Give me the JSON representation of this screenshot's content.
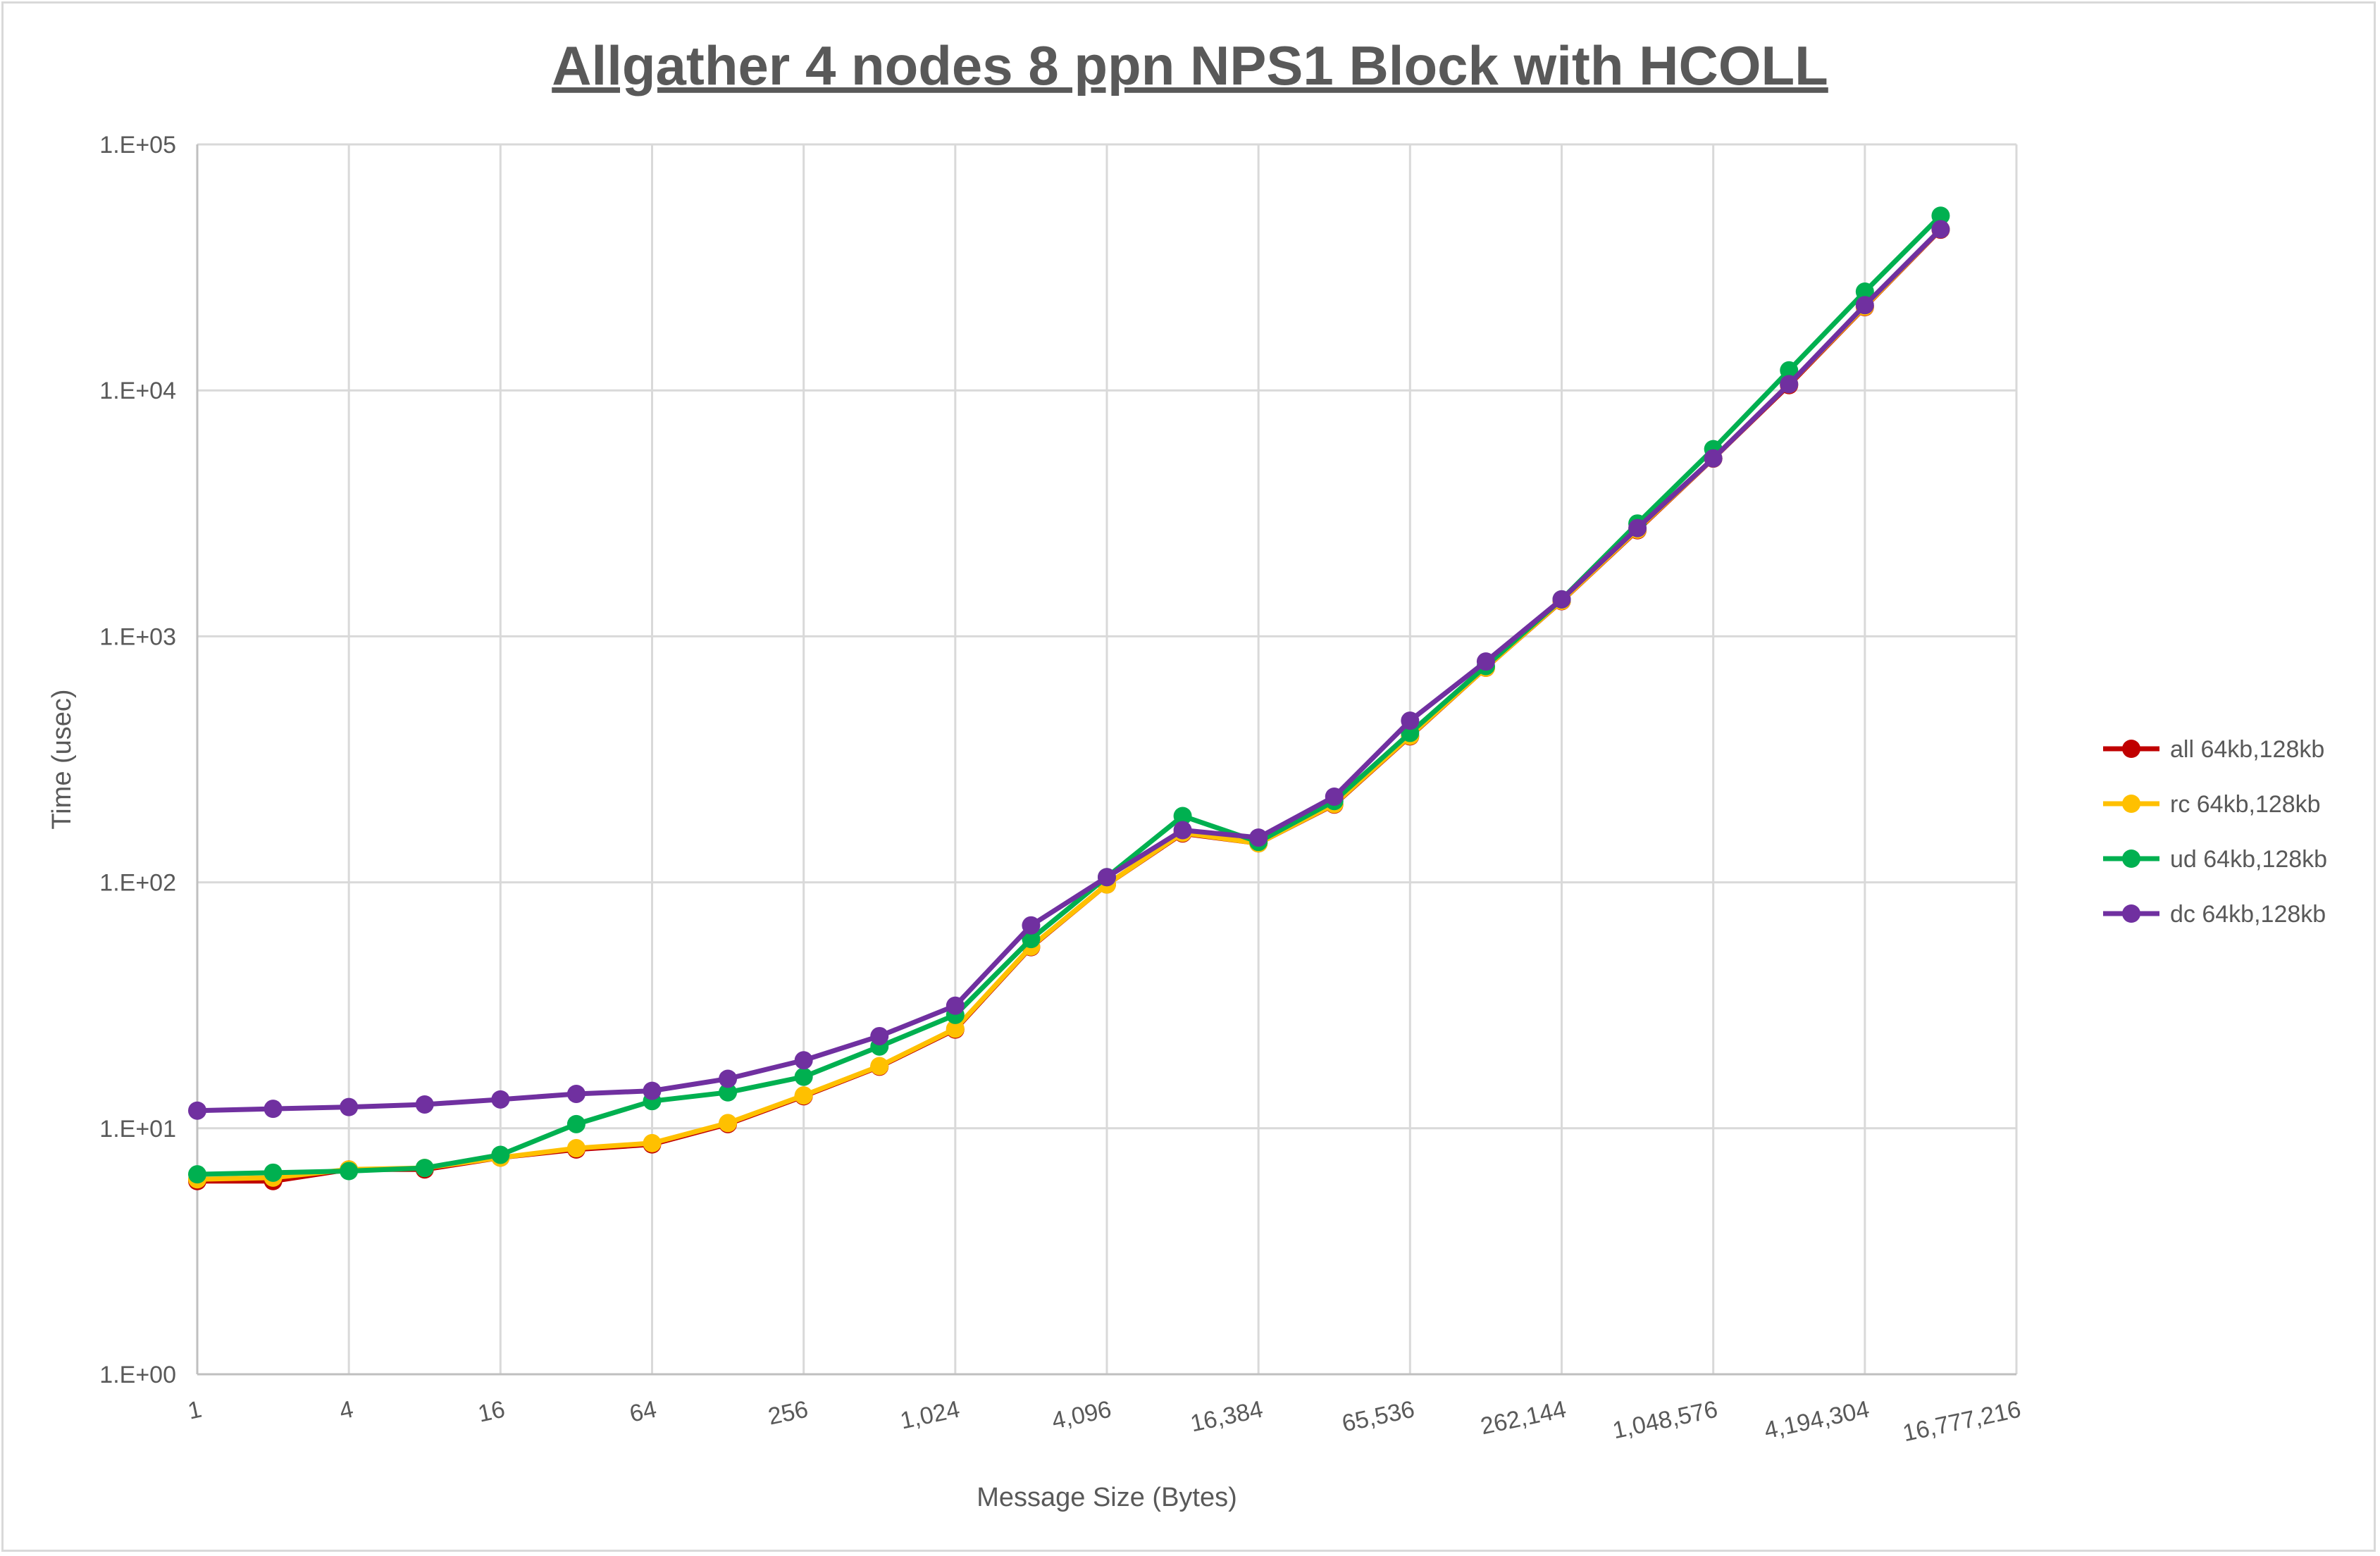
{
  "chart_data": {
    "type": "line",
    "title": "Allgather 4 nodes 8 ppn NPS1 Block with HCOLL",
    "xlabel": "Message Size (Bytes)",
    "ylabel": "Time (usec)",
    "x_scale": "log2",
    "y_scale": "log10",
    "xlim": [
      1,
      16777216
    ],
    "ylim": [
      1,
      100000
    ],
    "grid": true,
    "legend_position": "right",
    "x_tick_labels": [
      "1",
      "4",
      "16",
      "64",
      "256",
      "1,024",
      "4,096",
      "16,384",
      "65,536",
      "262,144",
      "1,048,576",
      "4,194,304",
      "16,777,216"
    ],
    "x_tick_values": [
      1,
      4,
      16,
      64,
      256,
      1024,
      4096,
      16384,
      65536,
      262144,
      1048576,
      4194304,
      16777216
    ],
    "y_tick_labels": [
      "1.E+00",
      "1.E+01",
      "1.E+02",
      "1.E+03",
      "1.E+04",
      "1.E+05"
    ],
    "y_tick_values": [
      1,
      10,
      100,
      1000,
      10000,
      100000
    ],
    "x": [
      1,
      2,
      4,
      8,
      16,
      32,
      64,
      128,
      256,
      512,
      1024,
      2048,
      4096,
      8192,
      16384,
      32768,
      65536,
      131072,
      262144,
      524288,
      1048576,
      2097152,
      4194304,
      8388608
    ],
    "series": [
      {
        "name": "all 64kb,128kb",
        "color": "#c00000",
        "values": [
          6.1,
          6.1,
          6.8,
          6.8,
          7.6,
          8.2,
          8.6,
          10.4,
          13.5,
          17.8,
          25.2,
          54.5,
          98,
          158,
          144,
          207,
          392,
          745,
          1390,
          2700,
          5280,
          10500,
          21800,
          45000
        ]
      },
      {
        "name": "rc 64kb,128kb",
        "color": "#ffc000",
        "values": [
          6.2,
          6.3,
          6.8,
          6.9,
          7.6,
          8.3,
          8.7,
          10.5,
          13.6,
          17.9,
          25.4,
          54.8,
          98,
          159,
          144,
          208,
          394,
          746,
          1394,
          2716,
          5290,
          10600,
          21900,
          45200
        ]
      },
      {
        "name": "ud 64kb,128kb",
        "color": "#00b050",
        "values": [
          6.5,
          6.6,
          6.7,
          6.9,
          7.8,
          10.4,
          12.9,
          14.0,
          16.2,
          21.5,
          28.9,
          58.8,
          105,
          186,
          146,
          214,
          405,
          757,
          1414,
          2876,
          5770,
          12060,
          25200,
          51300
        ]
      },
      {
        "name": "dc 64kb,128kb",
        "color": "#7030a0",
        "values": [
          11.8,
          12.0,
          12.2,
          12.5,
          13.1,
          13.8,
          14.2,
          15.9,
          18.9,
          23.7,
          31.5,
          66.8,
          105,
          163,
          152,
          223,
          454,
          790,
          1414,
          2754,
          5290,
          10600,
          22200,
          45200
        ]
      }
    ]
  }
}
